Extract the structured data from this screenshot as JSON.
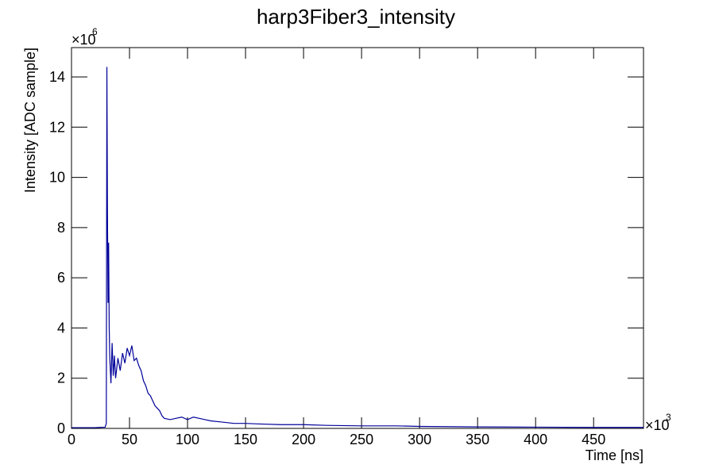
{
  "chart_data": {
    "type": "line",
    "title": "harp3Fiber3_intensity",
    "x_label": "Time [ns]",
    "y_label": "Intensity [ADC sample]",
    "x_scale_label": {
      "base": "×10",
      "exponent": "3"
    },
    "y_scale_label": {
      "base": "×10",
      "exponent": "6"
    },
    "xlim": [
      0,
      493
    ],
    "ylim": [
      0,
      15.17
    ],
    "xticks": [
      0,
      50,
      100,
      150,
      200,
      250,
      300,
      350,
      400,
      450
    ],
    "yticks": [
      0,
      2,
      4,
      6,
      8,
      10,
      12,
      14
    ],
    "grid": false,
    "series": [
      {
        "color": "#000099",
        "x": [
          0,
          10,
          20,
          29,
          30,
          30.5,
          31,
          31.5,
          32,
          32.5,
          33,
          34,
          35,
          36,
          37,
          38,
          40,
          42,
          44,
          46,
          48,
          50,
          52,
          54,
          56,
          58,
          60,
          62,
          64,
          66,
          68,
          70,
          72,
          74,
          76,
          78,
          80,
          85,
          90,
          95,
          100,
          105,
          110,
          120,
          130,
          140,
          150,
          160,
          180,
          200,
          220,
          250,
          280,
          300,
          350,
          400,
          450,
          493
        ],
        "values": [
          0.03,
          0.03,
          0.03,
          0.05,
          0.2,
          14.4,
          8.6,
          5.0,
          7.4,
          4.0,
          2.8,
          1.8,
          3.4,
          2.1,
          2.9,
          2.0,
          2.8,
          2.3,
          3.0,
          2.6,
          3.2,
          2.9,
          3.3,
          2.7,
          2.8,
          2.5,
          2.3,
          1.9,
          1.7,
          1.4,
          1.3,
          1.1,
          0.9,
          0.8,
          0.7,
          0.5,
          0.4,
          0.35,
          0.4,
          0.45,
          0.35,
          0.45,
          0.4,
          0.3,
          0.25,
          0.2,
          0.2,
          0.18,
          0.15,
          0.15,
          0.12,
          0.1,
          0.1,
          0.08,
          0.06,
          0.05,
          0.04,
          0.04
        ]
      }
    ]
  }
}
